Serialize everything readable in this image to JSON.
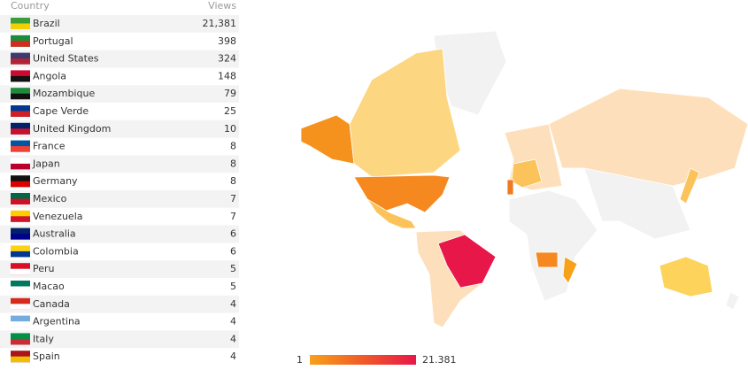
{
  "table": {
    "header": [
      "Country",
      "Views"
    ],
    "rows": [
      [
        "Brazil",
        "21,381"
      ],
      [
        "Portugal",
        "398"
      ],
      [
        "United States",
        "324"
      ],
      [
        "Angola",
        "148"
      ],
      [
        "Mozambique",
        "79"
      ],
      [
        "Cape Verde",
        "25"
      ],
      [
        "United Kingdom",
        "10"
      ],
      [
        "France",
        "8"
      ],
      [
        "Japan",
        "8"
      ],
      [
        "Germany",
        "8"
      ],
      [
        "Mexico",
        "7"
      ],
      [
        "Venezuela",
        "7"
      ],
      [
        "Australia",
        "6"
      ],
      [
        "Colombia",
        "6"
      ],
      [
        "Peru",
        "5"
      ],
      [
        "Macao",
        "5"
      ],
      [
        "Canada",
        "4"
      ],
      [
        "Argentina",
        "4"
      ],
      [
        "Italy",
        "4"
      ],
      [
        "Spain",
        "4"
      ]
    ]
  },
  "legend": {
    "min": "1",
    "max": "21.381"
  }
}
